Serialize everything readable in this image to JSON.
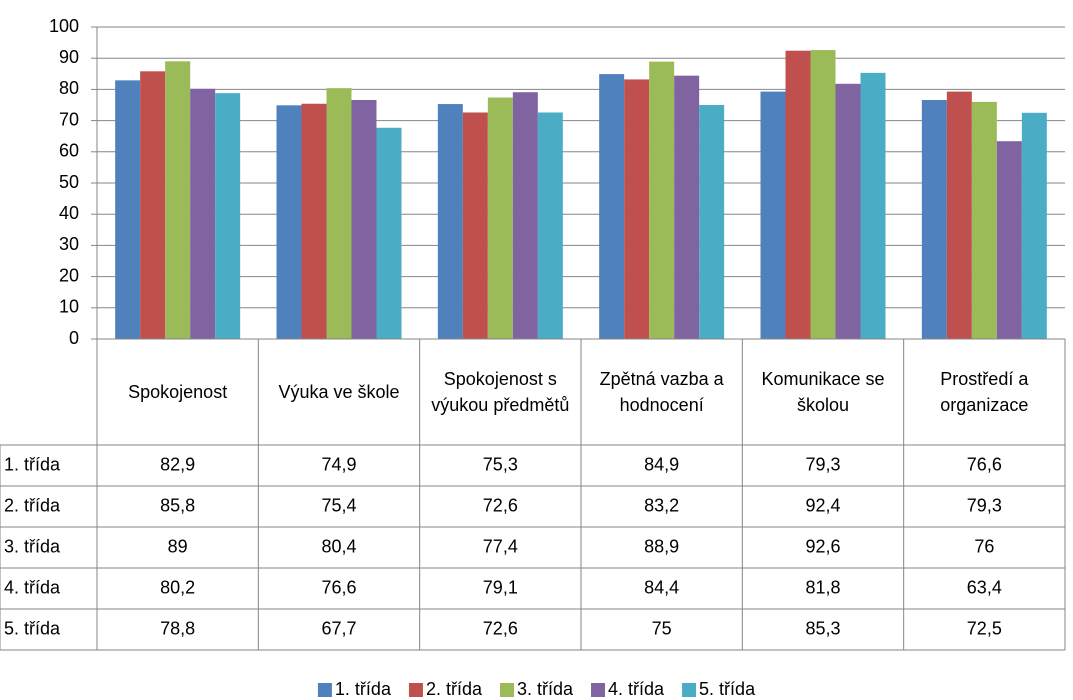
{
  "chart_data": {
    "type": "bar",
    "categories": [
      "Spokojenost",
      "Výuka ve škole",
      "Spokojenost s výukou předmětů",
      "Zpětná vazba a hodnocení",
      "Komunikace se školou",
      "Prostředí a organizace"
    ],
    "series": [
      {
        "name": "1. třída",
        "color": "#4f81bd",
        "values": [
          82.9,
          74.9,
          75.3,
          84.9,
          79.3,
          76.6
        ],
        "value_labels": [
          "82,9",
          "74,9",
          "75,3",
          "84,9",
          "79,3",
          "76,6"
        ]
      },
      {
        "name": "2. třída",
        "color": "#c0504d",
        "values": [
          85.8,
          75.4,
          72.6,
          83.2,
          92.4,
          79.3
        ],
        "value_labels": [
          "85,8",
          "75,4",
          "72,6",
          "83,2",
          "92,4",
          "79,3"
        ]
      },
      {
        "name": "3. třída",
        "color": "#9bbb59",
        "values": [
          89,
          80.4,
          77.4,
          88.9,
          92.6,
          76
        ],
        "value_labels": [
          "89",
          "80,4",
          "77,4",
          "88,9",
          "92,6",
          "76"
        ]
      },
      {
        "name": "4. třída",
        "color": "#8064a2",
        "values": [
          80.2,
          76.6,
          79.1,
          84.4,
          81.8,
          63.4
        ],
        "value_labels": [
          "80,2",
          "76,6",
          "79,1",
          "84,4",
          "81,8",
          "63,4"
        ]
      },
      {
        "name": "5. třída",
        "color": "#4bacc6",
        "values": [
          78.8,
          67.7,
          72.6,
          75,
          85.3,
          72.5
        ],
        "value_labels": [
          "78,8",
          "67,7",
          "72,6",
          "75",
          "85,3",
          "72,5"
        ]
      }
    ],
    "ylim": [
      0,
      100
    ],
    "yticks": [
      0,
      10,
      20,
      30,
      40,
      50,
      60,
      70,
      80,
      90,
      100
    ],
    "grid": true,
    "legend": "bottom"
  }
}
